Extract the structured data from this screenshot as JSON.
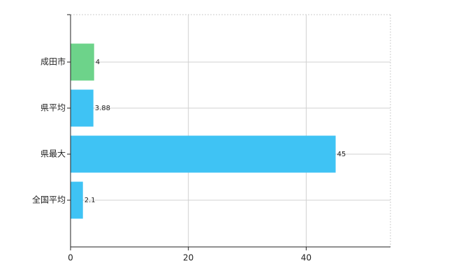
{
  "chart_data": {
    "type": "bar",
    "orientation": "horizontal",
    "categories": [
      "成田市",
      "県平均",
      "県最大",
      "全国平均"
    ],
    "values": [
      4,
      3.88,
      45,
      2.1
    ],
    "colors": [
      "#6dd38a",
      "#3fc3f4",
      "#3fc3f4",
      "#3fc3f4"
    ],
    "xlim": [
      0,
      54.3
    ],
    "xticks": [
      0,
      20,
      40
    ],
    "grid": true
  }
}
